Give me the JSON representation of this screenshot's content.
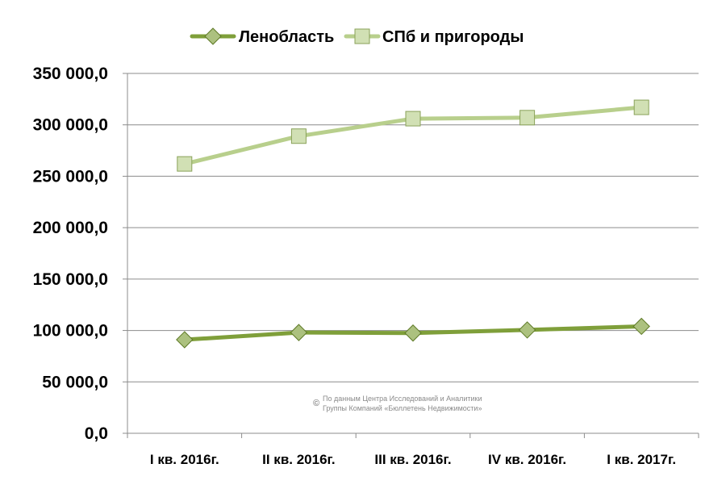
{
  "chart_data": {
    "type": "line",
    "categories": [
      "I кв. 2016г.",
      "II кв. 2016г.",
      "III кв. 2016г.",
      "IV кв. 2016г.",
      "I кв. 2017г."
    ],
    "series": [
      {
        "name": "Ленобласть",
        "values": [
          91000,
          98000,
          97500,
          100500,
          104000
        ],
        "color": "#7f9f3a",
        "marker": "diamond"
      },
      {
        "name": "СПб и пригороды",
        "values": [
          262000,
          289000,
          306000,
          307000,
          317000
        ],
        "color": "#b8cf8c",
        "marker": "square"
      }
    ],
    "ylim": [
      0,
      350000
    ],
    "yticks": [
      0,
      50000,
      100000,
      150000,
      200000,
      250000,
      300000,
      350000
    ],
    "ytick_labels": [
      "0,0",
      "50 000,0",
      "100 000,0",
      "150 000,0",
      "200 000,0",
      "250 000,0",
      "300 000,0",
      "350 000,0"
    ],
    "grid": true,
    "legend_position": "top"
  },
  "watermark": {
    "symbol": "©",
    "line1": "По данным Центра Исследований и Аналитики",
    "line2": "Группы Компаний «Бюллетень Недвижимости»"
  }
}
